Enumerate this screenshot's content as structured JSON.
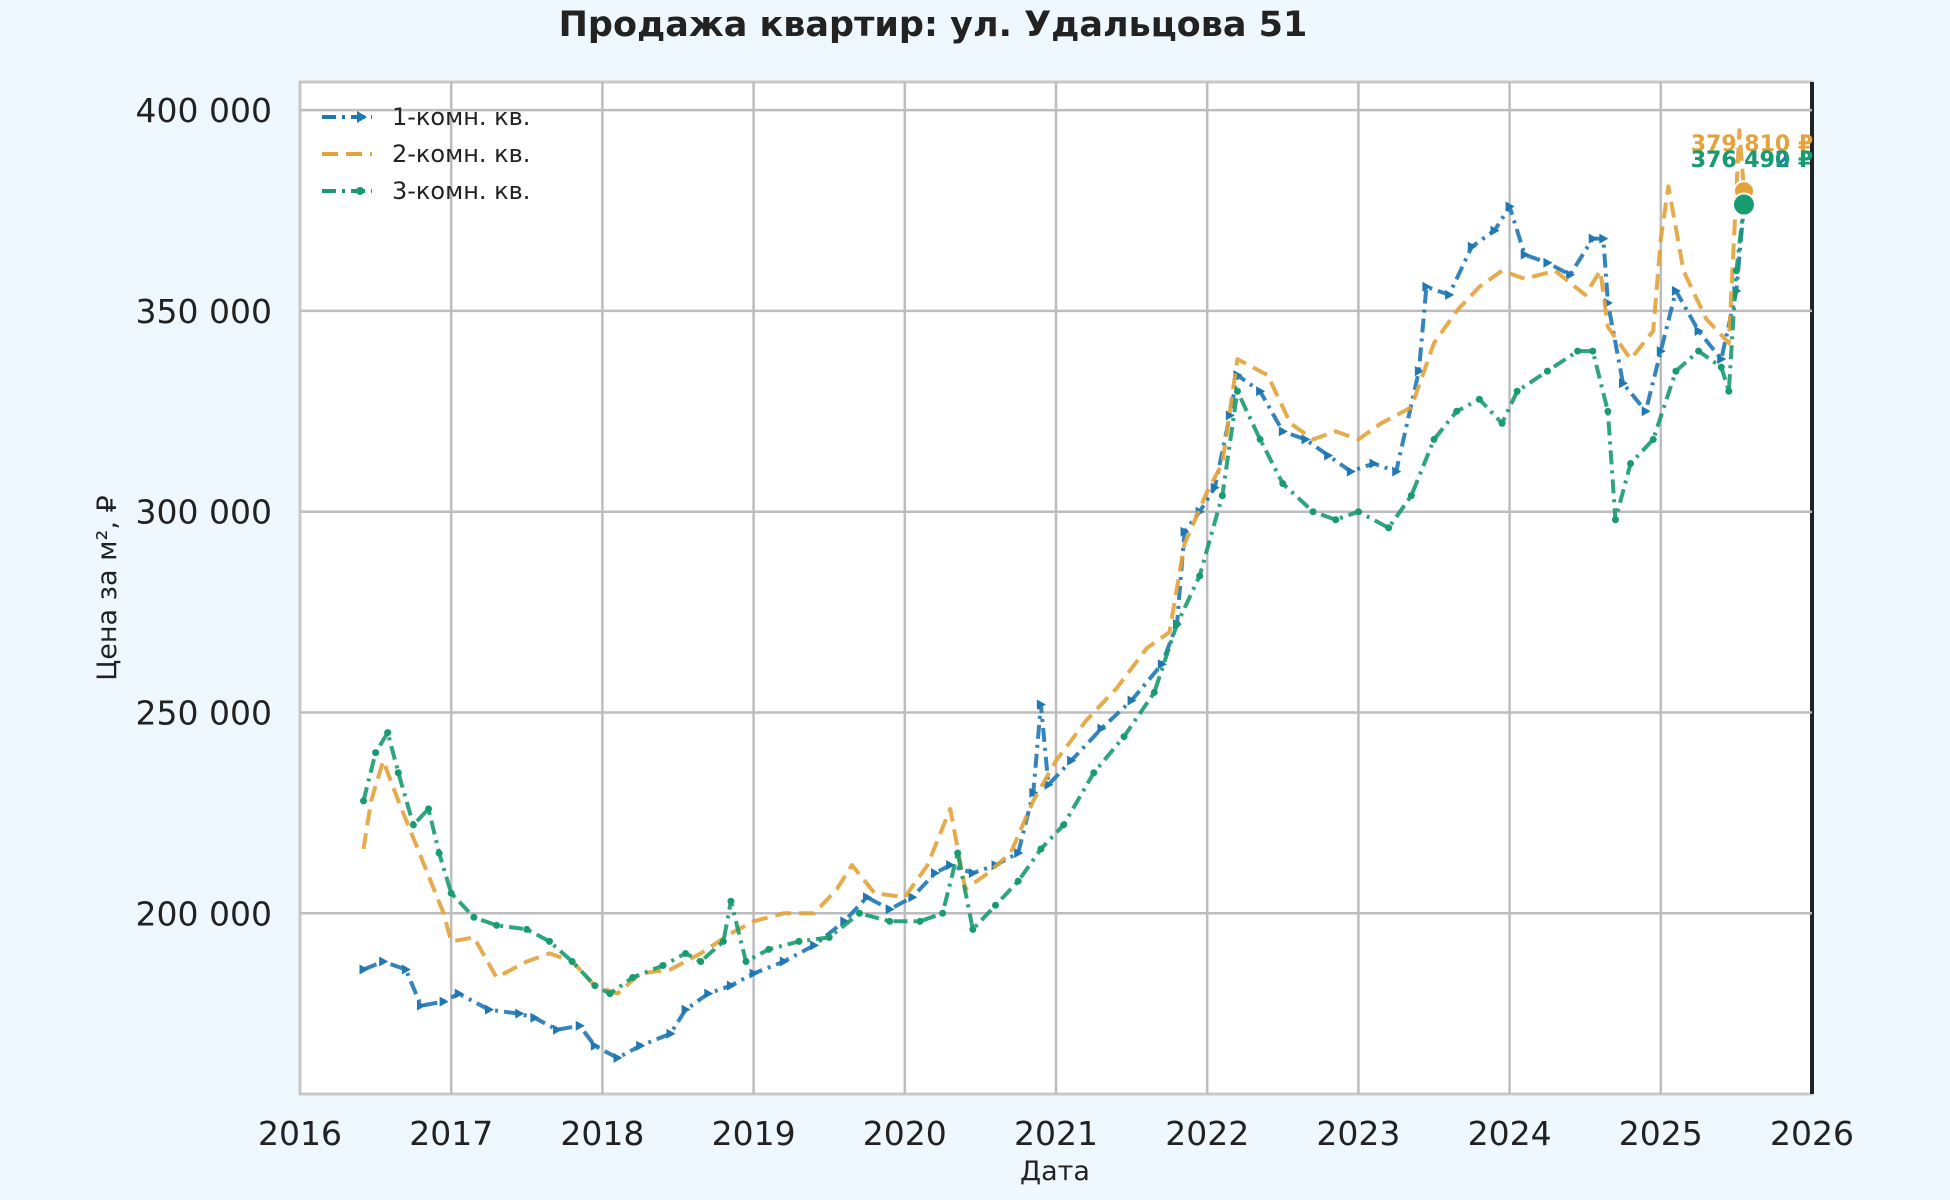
{
  "chart_data": {
    "type": "line",
    "title": "Продажа квартир: ул. Удальцова 51",
    "xlabel": "Дата",
    "ylabel": "Цена за м², ₽",
    "xlim": [
      2016,
      2026
    ],
    "ylim": [
      155000,
      407000
    ],
    "x_ticks": [
      2016,
      2017,
      2018,
      2019,
      2020,
      2021,
      2022,
      2023,
      2024,
      2025,
      2026
    ],
    "x_tick_labels": [
      "2016",
      "2017",
      "2018",
      "2019",
      "2020",
      "2021",
      "2022",
      "2023",
      "2024",
      "2025",
      "2026"
    ],
    "y_ticks": [
      200000,
      250000,
      300000,
      350000,
      400000
    ],
    "y_tick_labels": [
      "200 000",
      "250 000",
      "300 000",
      "350 000",
      "400 000"
    ],
    "grid": true,
    "legend_position": "top-left",
    "series": [
      {
        "name": "1-комн. кв.",
        "color": "#1f77b4",
        "dash": "dashdot",
        "marker": "triangle",
        "end_label": "376 492 ₽",
        "points": [
          [
            2016.42,
            186000
          ],
          [
            2016.55,
            188000
          ],
          [
            2016.7,
            186000
          ],
          [
            2016.8,
            177000
          ],
          [
            2016.95,
            178000
          ],
          [
            2017.05,
            180000
          ],
          [
            2017.25,
            176000
          ],
          [
            2017.45,
            175000
          ],
          [
            2017.55,
            174000
          ],
          [
            2017.7,
            171000
          ],
          [
            2017.85,
            172000
          ],
          [
            2017.95,
            167000
          ],
          [
            2018.1,
            164000
          ],
          [
            2018.25,
            167000
          ],
          [
            2018.45,
            170000
          ],
          [
            2018.55,
            176000
          ],
          [
            2018.7,
            180000
          ],
          [
            2018.85,
            182000
          ],
          [
            2019.0,
            185000
          ],
          [
            2019.2,
            188000
          ],
          [
            2019.4,
            192000
          ],
          [
            2019.6,
            198000
          ],
          [
            2019.75,
            204000
          ],
          [
            2019.9,
            201000
          ],
          [
            2020.05,
            204000
          ],
          [
            2020.2,
            210000
          ],
          [
            2020.3,
            212000
          ],
          [
            2020.45,
            210000
          ],
          [
            2020.6,
            212000
          ],
          [
            2020.75,
            215000
          ],
          [
            2020.85,
            230000
          ],
          [
            2020.9,
            252000
          ],
          [
            2020.95,
            232000
          ],
          [
            2021.1,
            238000
          ],
          [
            2021.3,
            246000
          ],
          [
            2021.5,
            253000
          ],
          [
            2021.7,
            262000
          ],
          [
            2021.8,
            272000
          ],
          [
            2021.85,
            295000
          ],
          [
            2021.95,
            300000
          ],
          [
            2022.05,
            306000
          ],
          [
            2022.15,
            324000
          ],
          [
            2022.2,
            334000
          ],
          [
            2022.35,
            330000
          ],
          [
            2022.5,
            320000
          ],
          [
            2022.65,
            318000
          ],
          [
            2022.8,
            314000
          ],
          [
            2022.95,
            310000
          ],
          [
            2023.1,
            312000
          ],
          [
            2023.25,
            310000
          ],
          [
            2023.4,
            335000
          ],
          [
            2023.45,
            356000
          ],
          [
            2023.6,
            354000
          ],
          [
            2023.75,
            366000
          ],
          [
            2023.9,
            370000
          ],
          [
            2024.0,
            376000
          ],
          [
            2024.1,
            364000
          ],
          [
            2024.25,
            362000
          ],
          [
            2024.4,
            359000
          ],
          [
            2024.55,
            368000
          ],
          [
            2024.62,
            368000
          ],
          [
            2024.65,
            352000
          ],
          [
            2024.75,
            332000
          ],
          [
            2024.9,
            325000
          ],
          [
            2025.0,
            340000
          ],
          [
            2025.1,
            355000
          ],
          [
            2025.25,
            345000
          ],
          [
            2025.4,
            338000
          ],
          [
            2025.5,
            355000
          ],
          [
            2025.55,
            376492
          ]
        ]
      },
      {
        "name": "2-комн. кв.",
        "color": "#e3a23a",
        "dash": "dashed",
        "marker": "none",
        "end_label": "379 810 ₽",
        "points": [
          [
            2016.42,
            216000
          ],
          [
            2016.47,
            228000
          ],
          [
            2016.55,
            238000
          ],
          [
            2016.65,
            228000
          ],
          [
            2016.8,
            214000
          ],
          [
            2016.95,
            200000
          ],
          [
            2017.0,
            193000
          ],
          [
            2017.15,
            194000
          ],
          [
            2017.3,
            184000
          ],
          [
            2017.5,
            188000
          ],
          [
            2017.65,
            190000
          ],
          [
            2017.8,
            188000
          ],
          [
            2017.95,
            182000
          ],
          [
            2018.1,
            180000
          ],
          [
            2018.25,
            185000
          ],
          [
            2018.45,
            186000
          ],
          [
            2018.65,
            190000
          ],
          [
            2018.85,
            195000
          ],
          [
            2019.0,
            198000
          ],
          [
            2019.2,
            200000
          ],
          [
            2019.4,
            200000
          ],
          [
            2019.55,
            206000
          ],
          [
            2019.65,
            212000
          ],
          [
            2019.8,
            205000
          ],
          [
            2020.0,
            204000
          ],
          [
            2020.15,
            212000
          ],
          [
            2020.3,
            226000
          ],
          [
            2020.4,
            206000
          ],
          [
            2020.55,
            210000
          ],
          [
            2020.7,
            215000
          ],
          [
            2020.85,
            228000
          ],
          [
            2021.0,
            238000
          ],
          [
            2021.2,
            248000
          ],
          [
            2021.4,
            256000
          ],
          [
            2021.6,
            266000
          ],
          [
            2021.75,
            270000
          ],
          [
            2021.85,
            292000
          ],
          [
            2022.0,
            305000
          ],
          [
            2022.1,
            312000
          ],
          [
            2022.2,
            338000
          ],
          [
            2022.4,
            334000
          ],
          [
            2022.55,
            322000
          ],
          [
            2022.7,
            318000
          ],
          [
            2022.85,
            320000
          ],
          [
            2023.0,
            318000
          ],
          [
            2023.15,
            322000
          ],
          [
            2023.35,
            326000
          ],
          [
            2023.5,
            342000
          ],
          [
            2023.65,
            350000
          ],
          [
            2023.8,
            356000
          ],
          [
            2023.95,
            360000
          ],
          [
            2024.1,
            358000
          ],
          [
            2024.3,
            360000
          ],
          [
            2024.5,
            354000
          ],
          [
            2024.6,
            360000
          ],
          [
            2024.65,
            346000
          ],
          [
            2024.8,
            338000
          ],
          [
            2024.95,
            345000
          ],
          [
            2025.0,
            368000
          ],
          [
            2025.05,
            381000
          ],
          [
            2025.15,
            360000
          ],
          [
            2025.3,
            348000
          ],
          [
            2025.45,
            342000
          ],
          [
            2025.52,
            395000
          ],
          [
            2025.55,
            379810
          ]
        ]
      },
      {
        "name": "3-комн. кв.",
        "color": "#189b6e",
        "dash": "dashdot",
        "marker": "dot",
        "end_label": "376 490 ₽",
        "points": [
          [
            2016.42,
            228000
          ],
          [
            2016.5,
            240000
          ],
          [
            2016.58,
            245000
          ],
          [
            2016.65,
            235000
          ],
          [
            2016.75,
            222000
          ],
          [
            2016.85,
            226000
          ],
          [
            2016.92,
            215000
          ],
          [
            2017.0,
            205000
          ],
          [
            2017.15,
            199000
          ],
          [
            2017.3,
            197000
          ],
          [
            2017.5,
            196000
          ],
          [
            2017.65,
            193000
          ],
          [
            2017.8,
            188000
          ],
          [
            2017.95,
            182000
          ],
          [
            2018.05,
            180000
          ],
          [
            2018.2,
            184000
          ],
          [
            2018.4,
            187000
          ],
          [
            2018.55,
            190000
          ],
          [
            2018.65,
            188000
          ],
          [
            2018.8,
            193000
          ],
          [
            2018.85,
            203000
          ],
          [
            2018.95,
            188000
          ],
          [
            2019.1,
            191000
          ],
          [
            2019.3,
            193000
          ],
          [
            2019.5,
            194000
          ],
          [
            2019.7,
            200000
          ],
          [
            2019.9,
            198000
          ],
          [
            2020.1,
            198000
          ],
          [
            2020.25,
            200000
          ],
          [
            2020.35,
            215000
          ],
          [
            2020.45,
            196000
          ],
          [
            2020.6,
            202000
          ],
          [
            2020.75,
            208000
          ],
          [
            2020.9,
            216000
          ],
          [
            2021.05,
            222000
          ],
          [
            2021.25,
            235000
          ],
          [
            2021.45,
            244000
          ],
          [
            2021.65,
            255000
          ],
          [
            2021.8,
            272000
          ],
          [
            2021.95,
            284000
          ],
          [
            2022.1,
            304000
          ],
          [
            2022.2,
            330000
          ],
          [
            2022.35,
            318000
          ],
          [
            2022.5,
            307000
          ],
          [
            2022.7,
            300000
          ],
          [
            2022.85,
            298000
          ],
          [
            2023.0,
            300000
          ],
          [
            2023.2,
            296000
          ],
          [
            2023.35,
            304000
          ],
          [
            2023.5,
            318000
          ],
          [
            2023.65,
            325000
          ],
          [
            2023.8,
            328000
          ],
          [
            2023.95,
            322000
          ],
          [
            2024.05,
            330000
          ],
          [
            2024.25,
            335000
          ],
          [
            2024.45,
            340000
          ],
          [
            2024.55,
            340000
          ],
          [
            2024.65,
            325000
          ],
          [
            2024.7,
            298000
          ],
          [
            2024.8,
            312000
          ],
          [
            2024.95,
            318000
          ],
          [
            2025.1,
            335000
          ],
          [
            2025.25,
            340000
          ],
          [
            2025.4,
            336000
          ],
          [
            2025.45,
            330000
          ],
          [
            2025.5,
            360000
          ],
          [
            2025.55,
            376490
          ]
        ]
      }
    ]
  }
}
